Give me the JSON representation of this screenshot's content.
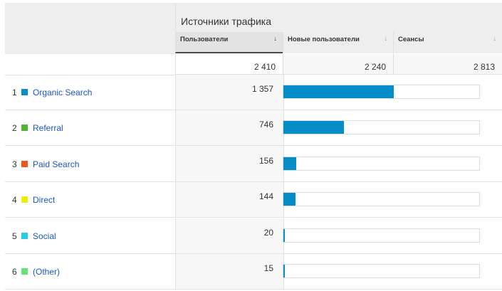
{
  "table": {
    "group_title": "Источники трафика",
    "columns": [
      {
        "label": "Пользователи",
        "sort_icon": "↓",
        "total": "2 410"
      },
      {
        "label": "Новые пользователи",
        "sort_icon": "↓",
        "total": "2 240"
      },
      {
        "label": "Сеансы",
        "sort_icon": "↓",
        "total": "2 813"
      }
    ],
    "rows": [
      {
        "index": "1",
        "name": "Organic Search",
        "color": "#058dc7",
        "value": "1 357",
        "share": 0.563
      },
      {
        "index": "2",
        "name": "Referral",
        "color": "#50b432",
        "value": "746",
        "share": 0.31
      },
      {
        "index": "3",
        "name": "Paid Search",
        "color": "#ed561b",
        "value": "156",
        "share": 0.065
      },
      {
        "index": "4",
        "name": "Direct",
        "color": "#edef00",
        "value": "144",
        "share": 0.06
      },
      {
        "index": "5",
        "name": "Social",
        "color": "#24cbe5",
        "value": "20",
        "share": 0.008
      },
      {
        "index": "6",
        "name": "(Other)",
        "color": "#64e572",
        "value": "15",
        "share": 0.006
      }
    ]
  },
  "colors": {
    "bar": "#058dc7",
    "link": "#1a57c6"
  }
}
